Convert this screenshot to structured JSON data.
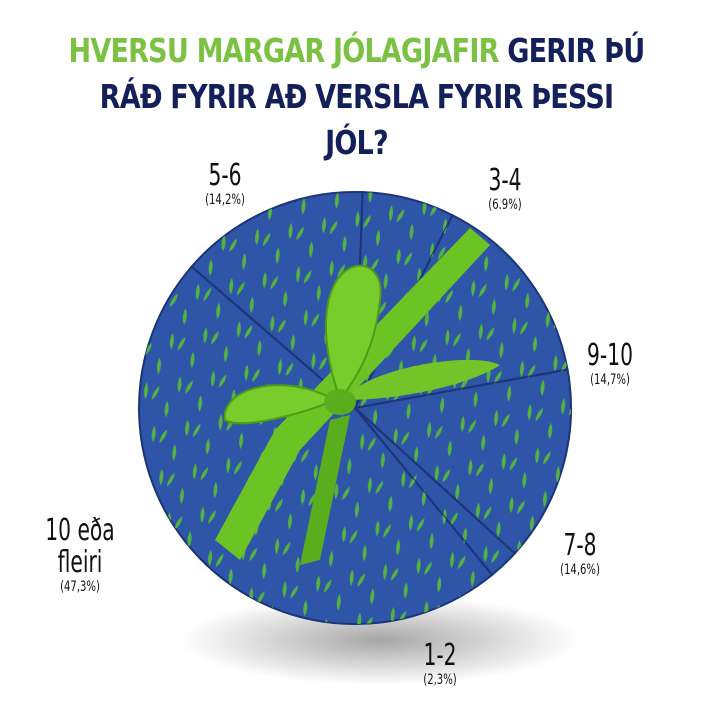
{
  "title": {
    "highlight": "HVERSU MARGAR JÓLAGJAFIR",
    "rest_line1": "GERIR ÞÚ",
    "line2": "RÁÐ FYRIR AÐ VERSLA FYRIR ÞESSI JÓL?"
  },
  "colors": {
    "accent_green": "#7cc242",
    "title_navy": "#13205a",
    "box_blue": "#2f55a8",
    "ribbon_green": "#6cc424"
  },
  "chart_data": {
    "type": "pie",
    "title": "HVERSU MARGAR JÓLAGJAFIR GERIR ÞÚ RÁÐ FYRIR AÐ VERSLA FYRIR ÞESSI JÓL?",
    "slices": [
      {
        "label": "3-4",
        "value": 6.9,
        "value_label": "(6.9%)"
      },
      {
        "label": "9-10",
        "value": 14.7,
        "value_label": "(14,7%)"
      },
      {
        "label": "7-8",
        "value": 14.6,
        "value_label": "(14,6%)"
      },
      {
        "label": "1-2",
        "value": 2.3,
        "value_label": "(2,3%)"
      },
      {
        "label": "10 eða fleiri",
        "value": 47.3,
        "value_label": "(47,3%)"
      },
      {
        "label": "5-6",
        "value": 14.2,
        "value_label": "(14,2%)"
      }
    ],
    "style": "gift box with ribbon"
  }
}
